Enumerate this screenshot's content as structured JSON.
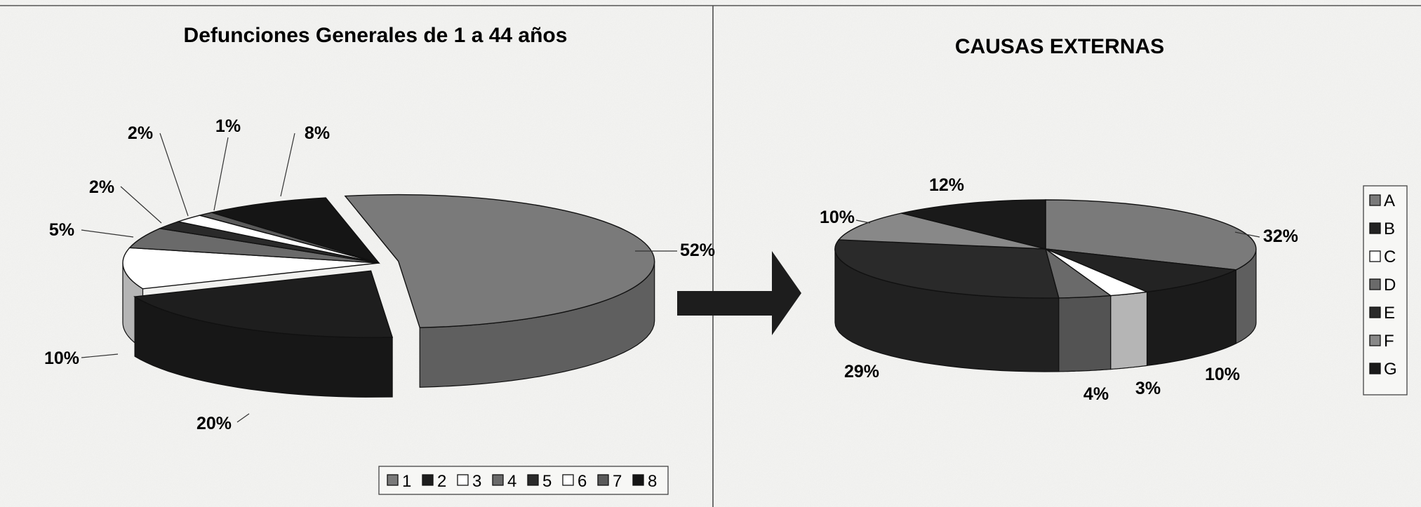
{
  "chart_data": [
    {
      "type": "pie",
      "title": "Defunciones Generales de 1 a 44 años",
      "categories": [
        "1",
        "2",
        "3",
        "4",
        "5",
        "6",
        "7",
        "8"
      ],
      "values": [
        52,
        20,
        10,
        5,
        2,
        2,
        1,
        8
      ],
      "labels": [
        "52%",
        "20%",
        "10%",
        "5%",
        "2%",
        "2%",
        "1%",
        "8%"
      ],
      "colors": [
        "#7a7a7a",
        "#1e1e1e",
        "#ffffff",
        "#6a6a6a",
        "#2a2a2a",
        "#ffffff",
        "#5a5a5a",
        "#151515"
      ],
      "legend": "bottom",
      "three_d": true,
      "exploded": [
        "1",
        "2"
      ]
    },
    {
      "type": "pie",
      "title": "CAUSAS EXTERNAS",
      "categories": [
        "A",
        "B",
        "C",
        "D",
        "E",
        "F",
        "G"
      ],
      "values": [
        32,
        10,
        3,
        4,
        29,
        10,
        12
      ],
      "labels": [
        "32%",
        "10%",
        "3%",
        "4%",
        "29%",
        "10%",
        "12%"
      ],
      "colors": [
        "#7a7a7a",
        "#232323",
        "#ffffff",
        "#6a6a6a",
        "#2a2a2a",
        "#888888",
        "#1a1a1a"
      ],
      "legend": "right",
      "three_d": true
    }
  ]
}
